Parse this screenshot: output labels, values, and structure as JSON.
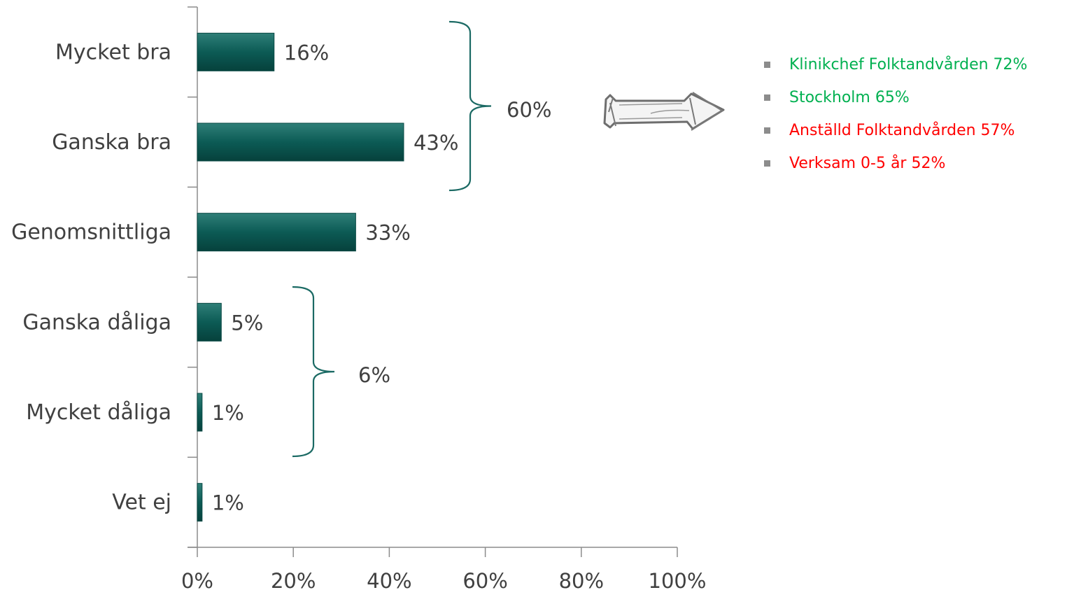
{
  "chart_data": {
    "type": "bar",
    "orientation": "horizontal",
    "categories": [
      "Mycket bra",
      "Ganska bra",
      "Genomsnittliga",
      "Ganska dåliga",
      "Mycket dåliga",
      "Vet ej"
    ],
    "values": [
      16,
      43,
      33,
      5,
      1,
      1
    ],
    "value_labels": [
      "16%",
      "43%",
      "33%",
      "5%",
      "1%",
      "1%"
    ],
    "x_ticks": [
      "0%",
      "20%",
      "40%",
      "60%",
      "80%",
      "100%"
    ],
    "xlim": [
      0,
      100
    ],
    "grid": false,
    "bar_color": "#0e5e58",
    "brace_color": "#1b6a64",
    "brackets": [
      {
        "categories": [
          "Mycket bra",
          "Ganska bra"
        ],
        "label": "60%"
      },
      {
        "categories": [
          "Ganska dåliga",
          "Mycket dåliga"
        ],
        "label": "6%"
      }
    ]
  },
  "side_list": [
    {
      "text": "Klinikchef Folktandvården 72%",
      "color": "#00b050"
    },
    {
      "text": "Stockholm 65%",
      "color": "#00b050"
    },
    {
      "text": "Anställd Folktandvården 57%",
      "color": "#ff0000"
    },
    {
      "text": "Verksam  0-5 år 52%",
      "color": "#ff0000"
    }
  ]
}
